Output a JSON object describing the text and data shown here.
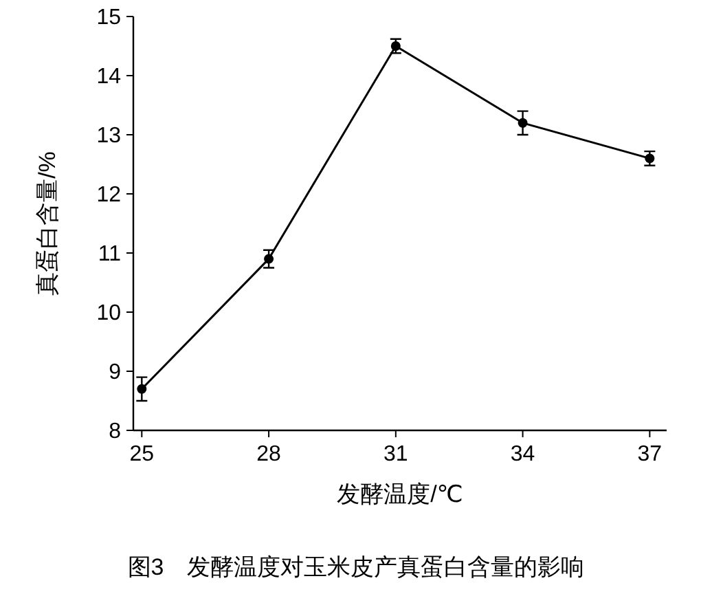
{
  "chart_data": {
    "type": "line",
    "xlabel": "发酵温度/℃",
    "ylabel": "真蛋白含量/%",
    "annotations": [
      "图3　发酵温度对玉米皮产真蛋白含量的影响"
    ],
    "x": [
      25,
      28,
      31,
      34,
      37
    ],
    "series": [
      {
        "color": "#000000",
        "values": [
          8.7,
          10.9,
          14.5,
          13.2,
          12.6
        ],
        "errors": [
          0.2,
          0.15,
          0.12,
          0.2,
          0.12
        ]
      }
    ],
    "xlim": [
      24.8,
      37.4
    ],
    "xticks": [
      25,
      28,
      31,
      34,
      37
    ],
    "ylim": [
      8,
      15
    ],
    "yticks": [
      8,
      9,
      10,
      11,
      12,
      13,
      14,
      15
    ],
    "grid": false,
    "marker": "circle",
    "line_style": "solid"
  }
}
